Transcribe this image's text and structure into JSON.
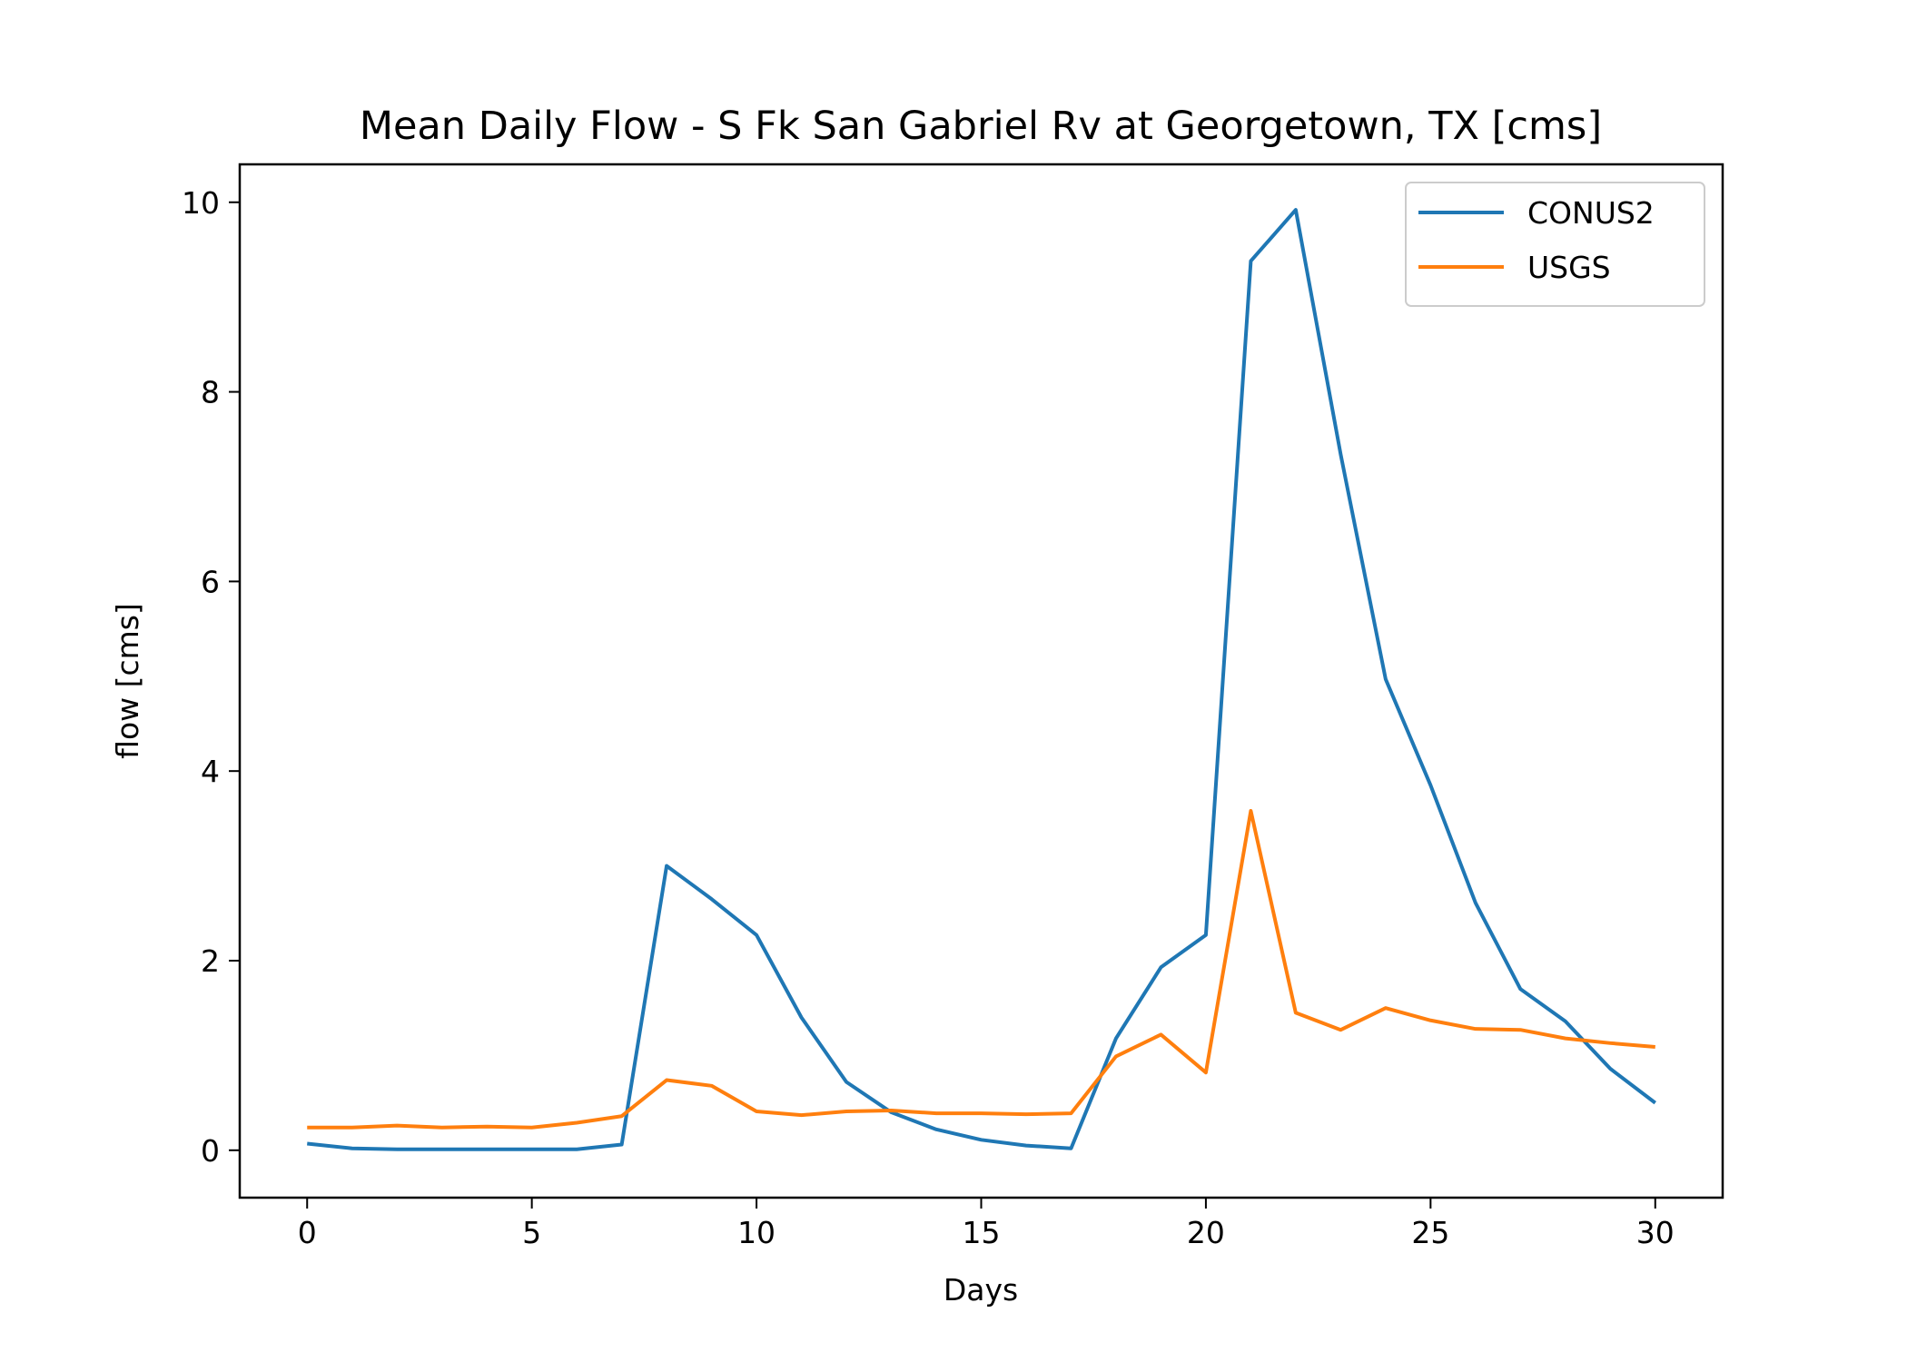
{
  "chart_data": {
    "type": "line",
    "title": "Mean Daily Flow - S Fk San Gabriel Rv at Georgetown, TX [cms]",
    "xlabel": "Days",
    "ylabel": "flow [cms]",
    "xlim": [
      -1.5,
      31.5
    ],
    "ylim": [
      -0.5,
      10.4
    ],
    "xticks": [
      0,
      5,
      10,
      15,
      20,
      25,
      30
    ],
    "yticks": [
      0,
      2,
      4,
      6,
      8,
      10
    ],
    "x": [
      0,
      1,
      2,
      3,
      4,
      5,
      6,
      7,
      8,
      9,
      10,
      11,
      12,
      13,
      14,
      15,
      16,
      17,
      18,
      19,
      20,
      21,
      22,
      23,
      24,
      25,
      26,
      27,
      28,
      29,
      30
    ],
    "series": [
      {
        "name": "CONUS2",
        "color": "#1f77b4",
        "values": [
          0.07,
          0.02,
          0.01,
          0.01,
          0.01,
          0.01,
          0.01,
          0.06,
          3.0,
          2.65,
          2.27,
          1.4,
          0.72,
          0.4,
          0.22,
          0.11,
          0.05,
          0.02,
          1.18,
          1.93,
          2.27,
          9.38,
          9.92,
          7.34,
          4.97,
          3.85,
          2.61,
          1.7,
          1.36,
          0.86,
          0.5
        ]
      },
      {
        "name": "USGS",
        "color": "#ff7f0e",
        "values": [
          0.24,
          0.24,
          0.26,
          0.24,
          0.25,
          0.24,
          0.29,
          0.36,
          0.74,
          0.68,
          0.41,
          0.37,
          0.41,
          0.42,
          0.39,
          0.39,
          0.38,
          0.39,
          0.99,
          1.22,
          0.82,
          3.58,
          1.45,
          1.27,
          1.5,
          1.37,
          1.28,
          1.27,
          1.18,
          1.13,
          1.09
        ]
      }
    ],
    "legend": "upper-right",
    "grid": false
  }
}
